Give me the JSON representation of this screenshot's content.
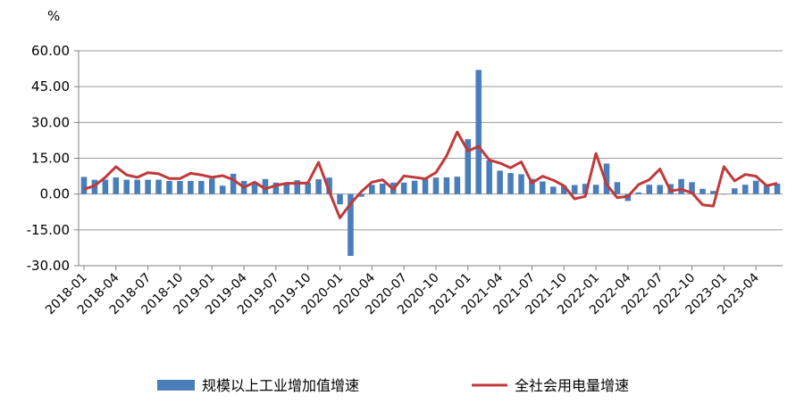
{
  "chart_data": {
    "type": "bar",
    "title": "",
    "xlabel": "",
    "ylabel": "%",
    "ylim": [
      -30,
      60
    ],
    "yticks": [
      -30,
      -15,
      0,
      15,
      30,
      45,
      60
    ],
    "ytick_labels": [
      "-30.00",
      "-15.00",
      "0.00",
      "15.00",
      "30.00",
      "45.00",
      "60.00"
    ],
    "grid": "horizontal",
    "legend_position": "bottom",
    "categories": [
      "2018-01",
      "2018-02",
      "2018-03",
      "2018-04",
      "2018-05",
      "2018-06",
      "2018-07",
      "2018-08",
      "2018-09",
      "2018-10",
      "2018-11",
      "2018-12",
      "2019-01",
      "2019-02",
      "2019-03",
      "2019-04",
      "2019-05",
      "2019-06",
      "2019-07",
      "2019-08",
      "2019-09",
      "2019-10",
      "2019-11",
      "2019-12",
      "2020-01",
      "2020-02",
      "2020-03",
      "2020-04",
      "2020-05",
      "2020-06",
      "2020-07",
      "2020-08",
      "2020-09",
      "2020-10",
      "2020-11",
      "2020-12",
      "2021-01",
      "2021-02",
      "2021-03",
      "2021-04",
      "2021-05",
      "2021-06",
      "2021-07",
      "2021-08",
      "2021-09",
      "2021-10",
      "2021-11",
      "2021-12",
      "2022-01",
      "2022-02",
      "2022-03",
      "2022-04",
      "2022-05",
      "2022-06",
      "2022-07",
      "2022-08",
      "2022-09",
      "2022-10",
      "2022-11",
      "2022-12",
      "2023-01",
      "2023-02",
      "2023-03",
      "2023-04",
      "2023-05",
      "2023-06"
    ],
    "xtick_labels": [
      "2018-01",
      "2018-04",
      "2018-07",
      "2018-10",
      "2019-01",
      "2019-04",
      "2019-07",
      "2019-10",
      "2020-01",
      "2020-04",
      "2020-07",
      "2020-10",
      "2021-01",
      "2021-04",
      "2021-07",
      "2021-10",
      "2022-01",
      "2022-04",
      "2022-07",
      "2022-10",
      "2023-01",
      "2023-04"
    ],
    "series": [
      {
        "name": "规模以上工业增加值增速",
        "type": "bar",
        "color": "#4a7ebb",
        "values": [
          7.2,
          6.0,
          6.0,
          7.0,
          6.0,
          6.0,
          6.0,
          6.0,
          5.5,
          5.5,
          5.5,
          5.5,
          6.5,
          3.5,
          8.5,
          5.5,
          5.0,
          6.3,
          4.8,
          4.4,
          5.8,
          4.7,
          6.2,
          6.9,
          -4.3,
          -25.9,
          -1.1,
          3.9,
          4.4,
          4.8,
          4.8,
          5.6,
          6.9,
          6.9,
          7.0,
          7.3,
          23.0,
          52.0,
          14.1,
          9.8,
          8.8,
          8.3,
          6.4,
          5.3,
          3.1,
          3.5,
          3.8,
          4.3,
          3.9,
          12.8,
          5.0,
          -2.9,
          0.7,
          3.9,
          3.8,
          4.2,
          6.3,
          5.0,
          2.2,
          1.3,
          0.0,
          2.4,
          3.9,
          5.6,
          3.5,
          4.4
        ]
      },
      {
        "name": "全社会用电量增速",
        "type": "line",
        "color": "#c0393b",
        "values": [
          2.0,
          3.5,
          7.0,
          11.5,
          8.0,
          7.0,
          9.0,
          8.5,
          6.5,
          6.5,
          8.7,
          8.0,
          7.0,
          7.7,
          6.0,
          2.8,
          5.0,
          2.2,
          3.6,
          4.5,
          4.5,
          4.7,
          13.3,
          1.0,
          -10.0,
          -4.0,
          1.0,
          5.0,
          6.0,
          2.0,
          7.6,
          7.0,
          6.4,
          9.0,
          16.0,
          26.0,
          18.0,
          20.0,
          14.3,
          13.0,
          11.0,
          13.5,
          4.6,
          7.5,
          5.8,
          3.5,
          -2.0,
          -1.0,
          17.0,
          4.0,
          -1.5,
          -1.0,
          4.0,
          6.0,
          10.5,
          1.3,
          2.0,
          0.5,
          -4.5,
          -5.0,
          11.5,
          5.5,
          8.2,
          7.5,
          3.5,
          4.5
        ]
      }
    ]
  }
}
